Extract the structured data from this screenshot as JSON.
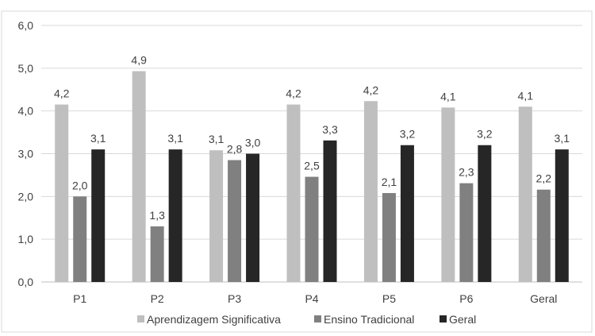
{
  "chart_data": {
    "type": "bar",
    "categories": [
      "P1",
      "P2",
      "P3",
      "P4",
      "P5",
      "P6",
      "Geral"
    ],
    "series": [
      {
        "name": "Aprendizagem Significativa",
        "values": [
          4.15,
          4.93,
          3.08,
          4.15,
          4.23,
          4.08,
          4.1
        ],
        "labels": [
          "4,2",
          "4,9",
          "3,1",
          "4,2",
          "4,2",
          "4,1",
          "4,1"
        ],
        "color": "#bfbfbf"
      },
      {
        "name": "Ensino Tradicional",
        "values": [
          2.0,
          1.3,
          2.85,
          2.46,
          2.08,
          2.31,
          2.16
        ],
        "labels": [
          "2,0",
          "1,3",
          "2,8",
          "2,5",
          "2,1",
          "2,3",
          "2,2"
        ],
        "color": "#808080"
      },
      {
        "name": "Geral",
        "values": [
          3.1,
          3.1,
          3.0,
          3.31,
          3.2,
          3.2,
          3.1
        ],
        "labels": [
          "3,1",
          "3,1",
          "3,0",
          "3,3",
          "3,2",
          "3,2",
          "3,1"
        ],
        "color": "#262626"
      }
    ],
    "ylim": [
      0,
      6
    ],
    "yticks": [
      "0,0",
      "1,0",
      "2,0",
      "3,0",
      "4,0",
      "5,0",
      "6,0"
    ],
    "grid": true,
    "legend_position": "bottom",
    "title": "",
    "xlabel": "",
    "ylabel": ""
  }
}
